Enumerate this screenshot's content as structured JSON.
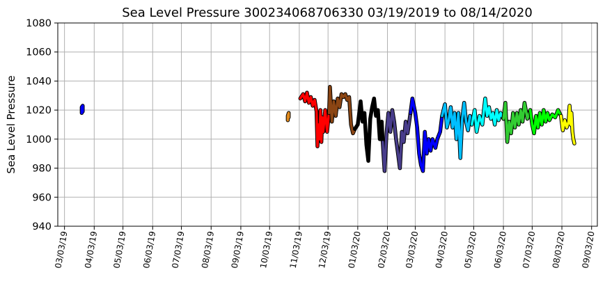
{
  "chart_data": {
    "type": "line",
    "title": "Sea Level Pressure 300234068706330  03/19/2019 to 08/14/2020",
    "xlabel": "",
    "ylabel": "Sea Level Pressure",
    "ylim": [
      940,
      1080
    ],
    "yticks": [
      "940",
      "960",
      "980",
      "1000",
      "1020",
      "1040",
      "1060",
      "1080"
    ],
    "xlim": [
      "2019-02-22",
      "2020-09-07"
    ],
    "xticks": [
      {
        "date": "2019-03-01",
        "label": "03/03/19"
      },
      {
        "date": "2019-04-01",
        "label": "04/03/19"
      },
      {
        "date": "2019-05-01",
        "label": "05/03/19"
      },
      {
        "date": "2019-06-01",
        "label": "06/03/19"
      },
      {
        "date": "2019-07-01",
        "label": "07/03/19"
      },
      {
        "date": "2019-08-01",
        "label": "08/03/19"
      },
      {
        "date": "2019-09-01",
        "label": "09/03/19"
      },
      {
        "date": "2019-10-01",
        "label": "10/03/19"
      },
      {
        "date": "2019-11-01",
        "label": "11/03/19"
      },
      {
        "date": "2019-12-01",
        "label": "12/03/19"
      },
      {
        "date": "2020-01-01",
        "label": "01/03/20"
      },
      {
        "date": "2020-02-01",
        "label": "02/03/20"
      },
      {
        "date": "2020-03-01",
        "label": "03/03/20"
      },
      {
        "date": "2020-04-01",
        "label": "04/03/20"
      },
      {
        "date": "2020-05-01",
        "label": "05/03/20"
      },
      {
        "date": "2020-06-01",
        "label": "06/03/20"
      },
      {
        "date": "2020-07-01",
        "label": "07/03/20"
      },
      {
        "date": "2020-08-01",
        "label": "08/03/20"
      },
      {
        "date": "2020-09-01",
        "label": "09/03/20"
      }
    ],
    "grid": true,
    "series": [
      {
        "color": "#0000ff",
        "points": [
          [
            "2019-03-19",
            1018
          ],
          [
            "2019-03-19",
            1022
          ],
          [
            "2019-03-20",
            1023
          ],
          [
            "2019-03-20",
            1019
          ]
        ]
      },
      {
        "color": "#e08a1e",
        "points": [
          [
            "2019-10-20",
            1013
          ],
          [
            "2019-10-20",
            1016
          ],
          [
            "2019-10-21",
            1018
          ],
          [
            "2019-10-21",
            1015
          ]
        ]
      },
      {
        "color": "#ff0000",
        "points": [
          [
            "2019-11-02",
            1028
          ],
          [
            "2019-11-05",
            1031
          ],
          [
            "2019-11-07",
            1026
          ],
          [
            "2019-11-09",
            1032
          ],
          [
            "2019-11-11",
            1025
          ],
          [
            "2019-11-13",
            1029
          ],
          [
            "2019-11-15",
            1023
          ],
          [
            "2019-11-17",
            1027
          ],
          [
            "2019-11-19",
            1019
          ],
          [
            "2019-11-20",
            995
          ],
          [
            "2019-11-21",
            1010
          ],
          [
            "2019-11-22",
            1000
          ],
          [
            "2019-11-23",
            1020
          ],
          [
            "2019-11-24",
            998
          ],
          [
            "2019-11-25",
            1015
          ],
          [
            "2019-11-26",
            1005
          ],
          [
            "2019-11-28",
            1020
          ],
          [
            "2019-11-30",
            1005
          ],
          [
            "2019-12-02",
            1018
          ]
        ]
      },
      {
        "color": "#8b4513",
        "points": [
          [
            "2019-12-02",
            1018
          ],
          [
            "2019-12-03",
            1036
          ],
          [
            "2019-12-05",
            1012
          ],
          [
            "2019-12-07",
            1026
          ],
          [
            "2019-12-09",
            1016
          ],
          [
            "2019-12-11",
            1028
          ],
          [
            "2019-12-13",
            1022
          ],
          [
            "2019-12-15",
            1031
          ],
          [
            "2019-12-17",
            1029
          ],
          [
            "2019-12-19",
            1031
          ],
          [
            "2019-12-21",
            1027
          ],
          [
            "2019-12-23",
            1029
          ],
          [
            "2019-12-25",
            1010
          ],
          [
            "2019-12-27",
            1004
          ],
          [
            "2019-12-29",
            1007
          ]
        ]
      },
      {
        "color": "#000000",
        "points": [
          [
            "2019-12-29",
            1007
          ],
          [
            "2020-01-01",
            1010
          ],
          [
            "2020-01-04",
            1026
          ],
          [
            "2020-01-06",
            1012
          ],
          [
            "2020-01-08",
            1018
          ],
          [
            "2020-01-10",
            996
          ],
          [
            "2020-01-12",
            985
          ],
          [
            "2020-01-14",
            1014
          ],
          [
            "2020-01-16",
            1022
          ],
          [
            "2020-01-18",
            1028
          ],
          [
            "2020-01-20",
            1016
          ],
          [
            "2020-01-22",
            1020
          ],
          [
            "2020-01-24",
            1000
          ],
          [
            "2020-01-26",
            1012
          ],
          [
            "2020-01-27",
            998
          ]
        ]
      },
      {
        "color": "#483d8b",
        "points": [
          [
            "2020-01-27",
            998
          ],
          [
            "2020-01-29",
            978
          ],
          [
            "2020-01-31",
            1004
          ],
          [
            "2020-02-02",
            1018
          ],
          [
            "2020-02-04",
            1005
          ],
          [
            "2020-02-06",
            1020
          ],
          [
            "2020-02-08",
            1012
          ],
          [
            "2020-02-10",
            1000
          ],
          [
            "2020-02-12",
            990
          ],
          [
            "2020-02-14",
            980
          ],
          [
            "2020-02-16",
            1005
          ],
          [
            "2020-02-18",
            998
          ],
          [
            "2020-02-20",
            1012
          ],
          [
            "2020-02-22",
            1004
          ],
          [
            "2020-02-25",
            1018
          ]
        ]
      },
      {
        "color": "#0000ff",
        "points": [
          [
            "2020-02-25",
            1018
          ],
          [
            "2020-02-27",
            1028
          ],
          [
            "2020-03-01",
            1018
          ],
          [
            "2020-03-03",
            1008
          ],
          [
            "2020-03-05",
            990
          ],
          [
            "2020-03-07",
            982
          ],
          [
            "2020-03-09",
            978
          ],
          [
            "2020-03-11",
            1005
          ],
          [
            "2020-03-13",
            990
          ],
          [
            "2020-03-15",
            1000
          ],
          [
            "2020-03-17",
            992
          ],
          [
            "2020-03-19",
            1000
          ],
          [
            "2020-03-22",
            994
          ],
          [
            "2020-03-24",
            1000
          ],
          [
            "2020-03-27",
            1005
          ],
          [
            "2020-03-29",
            1016
          ]
        ]
      },
      {
        "color": "#00bfff",
        "points": [
          [
            "2020-03-29",
            1016
          ],
          [
            "2020-04-01",
            1024
          ],
          [
            "2020-04-03",
            1008
          ],
          [
            "2020-04-05",
            1013
          ],
          [
            "2020-04-07",
            1022
          ],
          [
            "2020-04-09",
            1008
          ],
          [
            "2020-04-11",
            1018
          ],
          [
            "2020-04-13",
            1000
          ],
          [
            "2020-04-15",
            1018
          ],
          [
            "2020-04-17",
            987
          ],
          [
            "2020-04-19",
            1014
          ],
          [
            "2020-04-21",
            1025
          ],
          [
            "2020-04-23",
            1012
          ],
          [
            "2020-04-25",
            1006
          ],
          [
            "2020-04-27",
            1016
          ],
          [
            "2020-04-29",
            1010
          ]
        ]
      },
      {
        "color": "#00ffff",
        "points": [
          [
            "2020-04-29",
            1010
          ],
          [
            "2020-05-02",
            1020
          ],
          [
            "2020-05-04",
            1005
          ],
          [
            "2020-05-07",
            1016
          ],
          [
            "2020-05-10",
            1010
          ],
          [
            "2020-05-13",
            1028
          ],
          [
            "2020-05-15",
            1016
          ],
          [
            "2020-05-17",
            1022
          ],
          [
            "2020-05-19",
            1014
          ],
          [
            "2020-05-21",
            1018
          ],
          [
            "2020-05-23",
            1010
          ],
          [
            "2020-05-25",
            1020
          ],
          [
            "2020-05-27",
            1013
          ],
          [
            "2020-05-29",
            1018
          ],
          [
            "2020-06-01",
            1014
          ]
        ]
      },
      {
        "color": "#32cd32",
        "points": [
          [
            "2020-06-01",
            1014
          ],
          [
            "2020-06-03",
            1025
          ],
          [
            "2020-06-05",
            998
          ],
          [
            "2020-06-07",
            1012
          ],
          [
            "2020-06-09",
            1004
          ],
          [
            "2020-06-11",
            1018
          ],
          [
            "2020-06-13",
            1008
          ],
          [
            "2020-06-15",
            1018
          ],
          [
            "2020-06-17",
            1010
          ],
          [
            "2020-06-19",
            1020
          ],
          [
            "2020-06-21",
            1012
          ],
          [
            "2020-06-23",
            1025
          ],
          [
            "2020-06-26",
            1014
          ],
          [
            "2020-06-29",
            1020
          ]
        ]
      },
      {
        "color": "#00ff00",
        "points": [
          [
            "2020-06-29",
            1020
          ],
          [
            "2020-07-01",
            1010
          ],
          [
            "2020-07-03",
            1004
          ],
          [
            "2020-07-05",
            1016
          ],
          [
            "2020-07-07",
            1008
          ],
          [
            "2020-07-09",
            1018
          ],
          [
            "2020-07-11",
            1010
          ],
          [
            "2020-07-13",
            1020
          ],
          [
            "2020-07-15",
            1012
          ],
          [
            "2020-07-17",
            1018
          ],
          [
            "2020-07-19",
            1013
          ],
          [
            "2020-07-22",
            1017
          ],
          [
            "2020-07-25",
            1015
          ],
          [
            "2020-07-28",
            1020
          ],
          [
            "2020-07-31",
            1016
          ]
        ]
      },
      {
        "color": "#ffff00",
        "points": [
          [
            "2020-07-31",
            1016
          ],
          [
            "2020-08-02",
            1006
          ],
          [
            "2020-08-04",
            1013
          ],
          [
            "2020-08-06",
            1008
          ],
          [
            "2020-08-08",
            1012
          ],
          [
            "2020-08-09",
            1023
          ],
          [
            "2020-08-10",
            1010
          ],
          [
            "2020-08-11",
            1018
          ],
          [
            "2020-08-12",
            1005
          ],
          [
            "2020-08-13",
            1000
          ],
          [
            "2020-08-14",
            997
          ]
        ]
      }
    ]
  }
}
